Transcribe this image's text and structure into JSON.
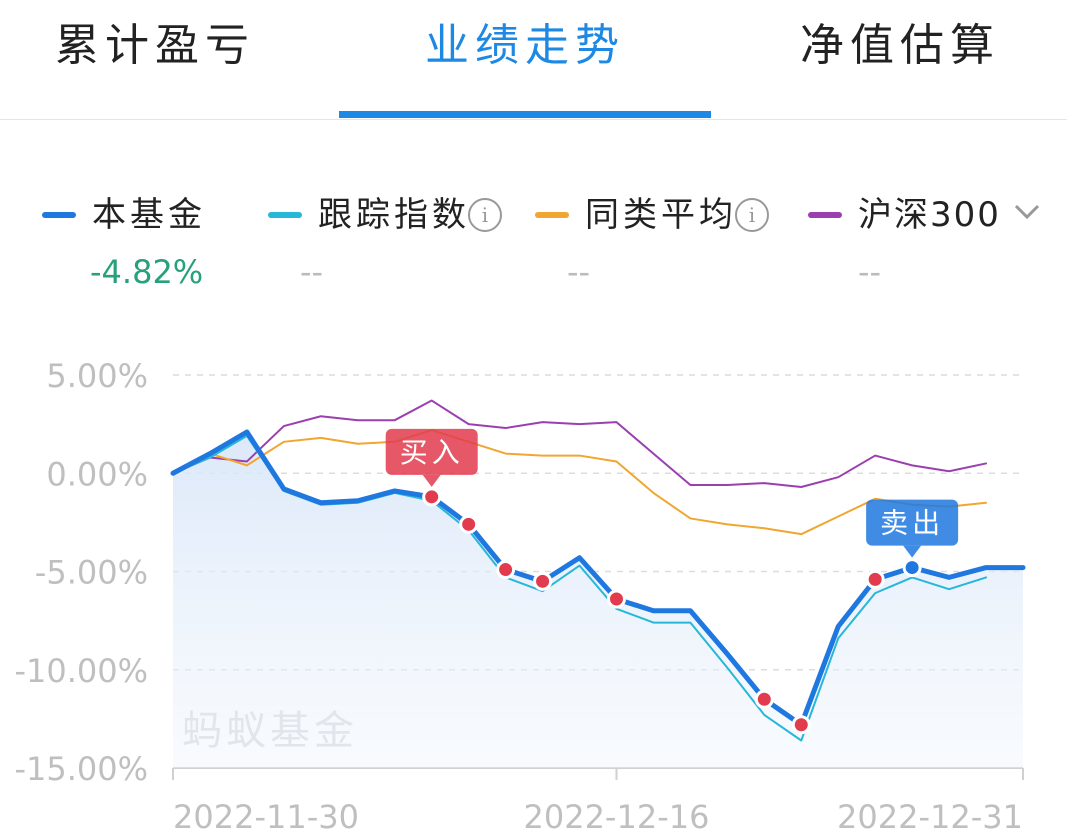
{
  "tabs": [
    {
      "label": "累计盈亏",
      "active": false
    },
    {
      "label": "业绩走势",
      "active": true
    },
    {
      "label": "净值估算",
      "active": false
    }
  ],
  "legend": [
    {
      "name": "本基金",
      "value": "-4.82%",
      "color": "#1e78e0"
    },
    {
      "name": "跟踪指数",
      "value": "--",
      "color": "#26b7d9",
      "info": true
    },
    {
      "name": "同类平均",
      "value": "--",
      "color": "#f0a630",
      "info": true
    },
    {
      "name": "沪深300",
      "value": "--",
      "color": "#9b3fb0",
      "dropdown": true
    }
  ],
  "icons": {
    "info": "i",
    "info_icon": "info-circle-icon",
    "dropdown_icon": "chevron-down-icon"
  },
  "watermark": "蚂蚁基金",
  "chart_data": {
    "type": "line",
    "y_ticks": [
      "5.00%",
      "0.00%",
      "-5.00%",
      "-10.00%",
      "-15.00%"
    ],
    "y_tick_values": [
      5,
      0,
      -5,
      -10,
      -15
    ],
    "ylim": [
      -15,
      5
    ],
    "x_tick_labels": [
      "2022-11-30",
      "2022-12-16",
      "2022-12-31"
    ],
    "x_tick_index": [
      0,
      12,
      23
    ],
    "grid": true,
    "series": [
      {
        "name": "本基金",
        "color": "#1e78e0",
        "values": [
          0.0,
          1.0,
          2.1,
          -0.8,
          -1.5,
          -1.4,
          -0.9,
          -1.2,
          -2.6,
          -4.9,
          -5.5,
          -4.3,
          -6.4,
          -7.0,
          -7.0,
          -9.2,
          -11.5,
          -12.8,
          -7.8,
          -5.4,
          -4.8,
          -5.3,
          -4.8,
          -4.8
        ]
      },
      {
        "name": "跟踪指数",
        "color": "#26b7d9",
        "values": [
          0.0,
          0.8,
          1.9,
          -0.9,
          -1.6,
          -1.5,
          -1.0,
          -1.4,
          -2.9,
          -5.3,
          -6.0,
          -4.7,
          -6.9,
          -7.6,
          -7.6,
          -9.9,
          -12.3,
          -13.6,
          -8.4,
          -6.1,
          -5.3,
          -5.9,
          -5.3,
          null
        ]
      },
      {
        "name": "同类平均",
        "color": "#f0a630",
        "values": [
          0.0,
          1.0,
          0.4,
          1.6,
          1.8,
          1.5,
          1.6,
          2.2,
          1.6,
          1.0,
          0.9,
          0.9,
          0.6,
          -1.0,
          -2.3,
          -2.6,
          -2.8,
          -3.1,
          -2.2,
          -1.3,
          -1.6,
          -1.7,
          -1.5,
          null
        ]
      },
      {
        "name": "沪深300",
        "color": "#9b3fb0",
        "values": [
          0.0,
          0.8,
          0.6,
          2.4,
          2.9,
          2.7,
          2.7,
          3.7,
          2.5,
          2.3,
          2.6,
          2.5,
          2.6,
          1.0,
          -0.6,
          -0.6,
          -0.5,
          -0.7,
          -0.2,
          0.9,
          0.4,
          0.1,
          0.5,
          null
        ]
      }
    ],
    "buy_points": [
      7,
      8,
      9,
      10,
      12,
      16,
      17,
      19
    ],
    "sell_points": [
      20
    ],
    "buy_label": "买入",
    "sell_label": "卖出",
    "buy_color": "#e23b4e",
    "sell_color": "#1e78e0"
  }
}
